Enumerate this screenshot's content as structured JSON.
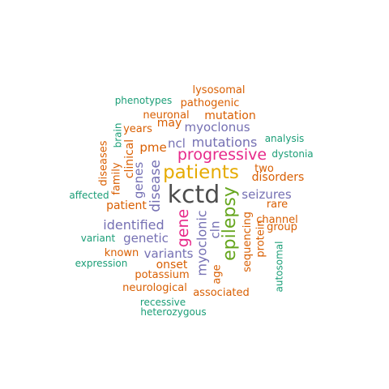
{
  "palette": {
    "dark": "#4d4d4d",
    "orange": "#d95f02",
    "purple": "#7570b3",
    "magenta": "#e7298a",
    "green": "#66a61e",
    "gold": "#e6ab02",
    "teal": "#1b9e77"
  },
  "words": [
    {
      "text": "kctd",
      "color": "dark",
      "weight": 10
    },
    {
      "text": "patients",
      "color": "gold",
      "weight": 8
    },
    {
      "text": "epilepsy",
      "color": "green",
      "weight": 7
    },
    {
      "text": "progressive",
      "color": "magenta",
      "weight": 6
    },
    {
      "text": "gene",
      "color": "magenta",
      "weight": 6
    },
    {
      "text": "mutations",
      "color": "purple",
      "weight": 5
    },
    {
      "text": "disease",
      "color": "purple",
      "weight": 5
    },
    {
      "text": "seizures",
      "color": "purple",
      "weight": 5
    },
    {
      "text": "identified",
      "color": "purple",
      "weight": 5
    },
    {
      "text": "myoclonic",
      "color": "purple",
      "weight": 5
    },
    {
      "text": "genes",
      "color": "purple",
      "weight": 4
    },
    {
      "text": "myoclonus",
      "color": "purple",
      "weight": 4
    },
    {
      "text": "genetic",
      "color": "purple",
      "weight": 4
    },
    {
      "text": "variants",
      "color": "purple",
      "weight": 4
    },
    {
      "text": "ncl",
      "color": "purple",
      "weight": 4
    },
    {
      "text": "cln",
      "color": "purple",
      "weight": 4
    },
    {
      "text": "pme",
      "color": "orange",
      "weight": 4
    },
    {
      "text": "mutation",
      "color": "orange",
      "weight": 3
    },
    {
      "text": "disorders",
      "color": "orange",
      "weight": 3
    },
    {
      "text": "patient",
      "color": "orange",
      "weight": 3
    },
    {
      "text": "onset",
      "color": "orange",
      "weight": 3
    },
    {
      "text": "clinical",
      "color": "orange",
      "weight": 3
    },
    {
      "text": "may",
      "color": "orange",
      "weight": 3
    },
    {
      "text": "sequencing",
      "color": "orange",
      "weight": 3
    },
    {
      "text": "pathogenic",
      "color": "orange",
      "weight": 2
    },
    {
      "text": "lysosomal",
      "color": "orange",
      "weight": 2
    },
    {
      "text": "neuronal",
      "color": "orange",
      "weight": 2
    },
    {
      "text": "years",
      "color": "orange",
      "weight": 2
    },
    {
      "text": "family",
      "color": "orange",
      "weight": 2
    },
    {
      "text": "diseases",
      "color": "orange",
      "weight": 2
    },
    {
      "text": "two",
      "color": "orange",
      "weight": 2
    },
    {
      "text": "rare",
      "color": "orange",
      "weight": 2
    },
    {
      "text": "channel",
      "color": "orange",
      "weight": 2
    },
    {
      "text": "group",
      "color": "orange",
      "weight": 2
    },
    {
      "text": "protein",
      "color": "orange",
      "weight": 2
    },
    {
      "text": "known",
      "color": "orange",
      "weight": 2
    },
    {
      "text": "potassium",
      "color": "orange",
      "weight": 2
    },
    {
      "text": "age",
      "color": "orange",
      "weight": 2
    },
    {
      "text": "neurological",
      "color": "orange",
      "weight": 2
    },
    {
      "text": "associated",
      "color": "orange",
      "weight": 2
    },
    {
      "text": "phenotypes",
      "color": "teal",
      "weight": 1
    },
    {
      "text": "brain",
      "color": "teal",
      "weight": 1
    },
    {
      "text": "analysis",
      "color": "teal",
      "weight": 1
    },
    {
      "text": "dystonia",
      "color": "teal",
      "weight": 1
    },
    {
      "text": "affected",
      "color": "teal",
      "weight": 1
    },
    {
      "text": "variant",
      "color": "teal",
      "weight": 1
    },
    {
      "text": "expression",
      "color": "teal",
      "weight": 1
    },
    {
      "text": "autosomal",
      "color": "teal",
      "weight": 1
    },
    {
      "text": "recessive",
      "color": "teal",
      "weight": 1
    },
    {
      "text": "heterozygous",
      "color": "teal",
      "weight": 1
    }
  ]
}
